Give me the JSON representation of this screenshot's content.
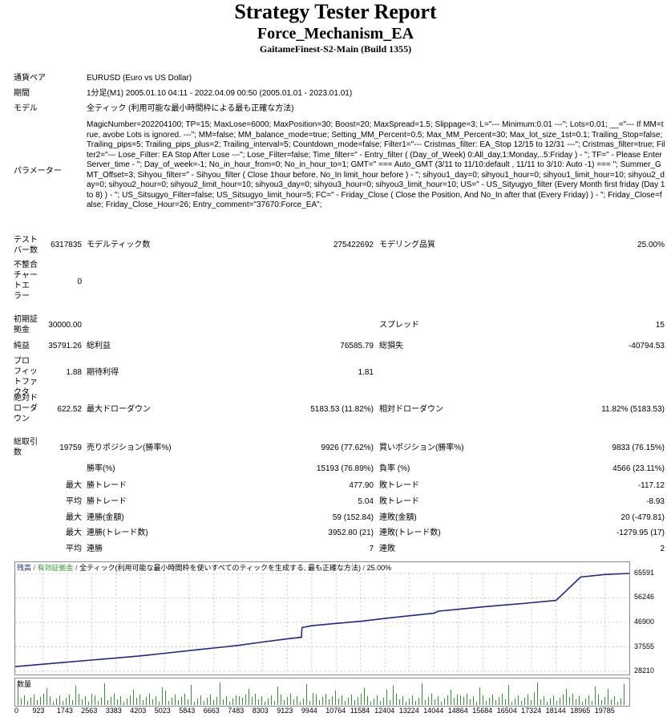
{
  "header": {
    "title": "Strategy Tester Report",
    "ea_name": "Force_Mechanism_EA",
    "server": "GaitameFinest-S2-Main (Build 1355)"
  },
  "info": {
    "symbol_label": "通貨ペア",
    "symbol_value": "EURUSD (Euro vs US Dollar)",
    "period_label": "期間",
    "period_value": "1分足(M1) 2005.01.10 04:11 - 2022.04.09 00:50 (2005.01.01 - 2023.01.01)",
    "model_label": "モデル",
    "model_value": "全ティック (利用可能な最小時間枠による最も正確な方法)",
    "params_label": "パラメーター",
    "params_value": "MagicNumber=202204100; TP=15; MaxLose=6000; MaxPosition=30; Boost=20; MaxSpread=1.5; Slippage=3; L=\"--- Minimum:0.01 ---\"; Lots=0.01; __=\"--- If MM=true, avobe Lots is ignored. ---\"; MM=false; MM_balance_mode=true; Setting_MM_Percent=0.5; Max_MM_Percent=30; Max_lot_size_1st=0.1; Trailing_Stop=false; Trailing_pips=5; Trailing_pips_plus=2; Trailing_interval=5; Countdown_mode=false; Filter1=\"--- Cristmas_filter: EA_Stop 12/15 to 12/31 ---\"; Cristmas_filter=true; Filter2=\"--- Lose_Filter: EA Stop After Lose ---\"; Lose_Filter=false; Time_filter=\" - Entry_filter ( (Day_of_Week) 0:All_day,1:Monday,..5:Friday ) - \"; TF=\" - Please Enter Server_time - \"; Day_of_week=-1; No_in_hour_from=0; No_in_hour_to=1; GMT=\" === Auto_GMT (3/11 to 11/10:default , 11/11 to 3/10: Auto -1) === \"; Summer_GMT_Offset=3; Sihyou_filter=\" - Sihyou_filter ( Close 1hour before, No_In limit_hour before ) - \"; sihyou1_day=0; sihyou1_hour=0; sihyou1_limit_hour=10; sihyou2_day=0; sihyou2_hour=0; sihyou2_limit_hour=10; sihyou3_day=0; sihyou3_hour=0; sihyou3_limit_hour=10; US=\" - US_Sityugyo_filter (Every Month first friday (Day 1 to 8) ) - \"; US_Sitsugyo_Filter=false; US_Sitsugyo_limit_hour=5; FC=\" - Friday_Close ( Close the Position, And No_In after that (Every Friday) ) - \"; Friday_Close=false; Friday_Close_Hour=26; Entry_comment=\"37670:Force_EA\";"
  },
  "stats": {
    "bars_label": "テスト\nバー数",
    "bars_value": "6317835",
    "ticks_label": "モデルティック数",
    "ticks_value": "275422692",
    "quality_label": "モデリング品質",
    "quality_value": "25.00%",
    "mismatch_label": "不整合\nチャー\nトエ\nラー",
    "mismatch_value": "0",
    "deposit_label": "初期証\n拠金",
    "deposit_value": "30000.00",
    "spread_label": "スプレッド",
    "spread_value": "15",
    "net_label": "純益",
    "net_value": "35791.26",
    "gross_profit_label": "総利益",
    "gross_profit_value": "76585.79",
    "gross_loss_label": "総損失",
    "gross_loss_value": "-40794.53",
    "pf_label": "プロ\nフィッ\nトファ\nクタ",
    "pf_value": "1.88",
    "expected_label": "期待利得",
    "expected_value": "1.81",
    "abs_dd_label": "絶対ド\nローダ\nウン",
    "abs_dd_value": "622.52",
    "max_dd_label": "最大ドローダウン",
    "max_dd_value": "5183.53 (11.82%)",
    "rel_dd_label": "相対ドローダウン",
    "rel_dd_value": "11.82% (5183.53)",
    "trades_label": "総取引\n数",
    "trades_value": "19759",
    "short_label": "売りポジション(勝率%)",
    "short_value": "9926 (77.62%)",
    "long_label": "買いポジション(勝率%)",
    "long_value": "9833 (76.15%)"
  },
  "rows": [
    {
      "prefix": "",
      "l1": "勝率(%)",
      "v1": "15193 (76.89%)",
      "l2": "負率 (%)",
      "v2": "4566 (23.11%)"
    },
    {
      "prefix": "最大",
      "l1": "勝トレード",
      "v1": "477.90",
      "l2": "敗トレード",
      "v2": "-117.12"
    },
    {
      "prefix": "平均",
      "l1": "勝トレード",
      "v1": "5.04",
      "l2": "敗トレード",
      "v2": "-8.93"
    },
    {
      "prefix": "最大",
      "l1": "連勝(金額)",
      "v1": "59 (152.84)",
      "l2": "連敗(金額)",
      "v2": "20 (-479.81)"
    },
    {
      "prefix": "最大",
      "l1": "連勝(トレード数)",
      "v1": "3952.80 (21)",
      "l2": "連敗(トレード数)",
      "v2": "-1279.95 (17)"
    },
    {
      "prefix": "平均",
      "l1": "連勝",
      "v1": "7",
      "l2": "連敗",
      "v2": "2"
    }
  ],
  "chart_data": {
    "type": "line",
    "legend_balance": "残高",
    "legend_equity": "有効証拠金",
    "legend_model": "全ティック(利用可能な最小時間枠を使いすべてのティックを生成する, 最も正確な方法)",
    "legend_quality": "25.00%",
    "y_ticks": [
      "65591",
      "56246",
      "46900",
      "37555",
      "28210"
    ],
    "x_ticks": [
      "0",
      "923",
      "1743",
      "2563",
      "3383",
      "4203",
      "5023",
      "5843",
      "6663",
      "7483",
      "8303",
      "9123",
      "9944",
      "10764",
      "11584",
      "12404",
      "13224",
      "14044",
      "14864",
      "15684",
      "16504",
      "17324",
      "18144",
      "18965",
      "19785"
    ],
    "ylim": [
      28210,
      65591
    ],
    "xlim": [
      0,
      20600
    ],
    "balance_points": [
      [
        0,
        30000
      ],
      [
        923,
        30900
      ],
      [
        1743,
        31700
      ],
      [
        2563,
        32500
      ],
      [
        3383,
        33300
      ],
      [
        4203,
        34100
      ],
      [
        5023,
        35100
      ],
      [
        5843,
        36100
      ],
      [
        6663,
        37100
      ],
      [
        7483,
        38100
      ],
      [
        8303,
        39400
      ],
      [
        9123,
        40600
      ],
      [
        9600,
        41200
      ],
      [
        9620,
        44900
      ],
      [
        9944,
        45600
      ],
      [
        10764,
        46500
      ],
      [
        11584,
        47300
      ],
      [
        12404,
        48400
      ],
      [
        13224,
        49400
      ],
      [
        14044,
        50400
      ],
      [
        14200,
        51200
      ],
      [
        14864,
        51900
      ],
      [
        15684,
        52800
      ],
      [
        16504,
        53600
      ],
      [
        17324,
        54400
      ],
      [
        18144,
        55300
      ],
      [
        18965,
        64200
      ],
      [
        19785,
        65200
      ],
      [
        20600,
        65591
      ]
    ],
    "volume_label": "数量"
  },
  "colors": {
    "balance_line": "#1c2a8a",
    "grid": "#c8c8c8",
    "volume_bar": "#2e9a2e",
    "legend_equity": "#2e9a2e"
  }
}
